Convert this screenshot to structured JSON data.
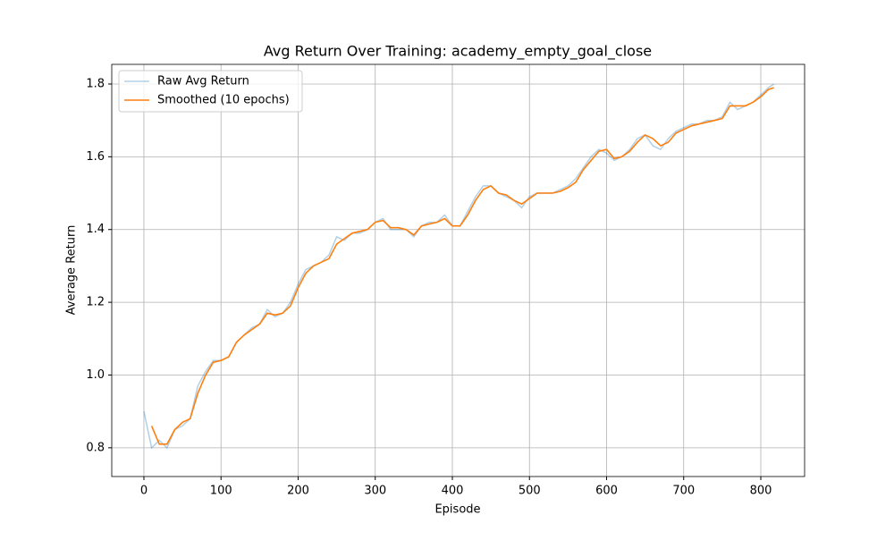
{
  "chart_data": {
    "type": "line",
    "title": "Avg Return Over Training: academy_empty_goal_close",
    "x_label": "Episode",
    "y_label": "Average Return",
    "x": [
      0,
      10,
      20,
      30,
      40,
      50,
      60,
      70,
      80,
      90,
      100,
      110,
      120,
      130,
      140,
      150,
      160,
      170,
      180,
      190,
      200,
      210,
      220,
      230,
      240,
      250,
      260,
      270,
      280,
      290,
      300,
      310,
      320,
      330,
      340,
      350,
      360,
      370,
      380,
      390,
      400,
      410,
      420,
      430,
      440,
      450,
      460,
      470,
      480,
      490,
      500,
      510,
      520,
      530,
      540,
      550,
      560,
      570,
      580,
      590,
      600,
      610,
      620,
      630,
      640,
      650,
      660,
      670,
      680,
      690,
      700,
      710,
      720,
      730,
      740,
      750,
      760,
      770,
      780,
      790,
      800,
      810,
      817
    ],
    "series": [
      {
        "name": "Raw Avg Return",
        "color": "#1f77b4",
        "values": [
          0.9,
          0.8,
          0.82,
          0.8,
          0.85,
          0.86,
          0.88,
          0.97,
          1.01,
          1.04,
          1.04,
          1.05,
          1.09,
          1.11,
          1.13,
          1.14,
          1.18,
          1.16,
          1.17,
          1.2,
          1.25,
          1.29,
          1.3,
          1.31,
          1.33,
          1.38,
          1.37,
          1.39,
          1.39,
          1.4,
          1.42,
          1.43,
          1.4,
          1.4,
          1.4,
          1.38,
          1.41,
          1.42,
          1.42,
          1.44,
          1.41,
          1.41,
          1.45,
          1.49,
          1.52,
          1.52,
          1.5,
          1.49,
          1.48,
          1.46,
          1.49,
          1.5,
          1.5,
          1.5,
          1.51,
          1.52,
          1.54,
          1.57,
          1.6,
          1.62,
          1.61,
          1.59,
          1.6,
          1.62,
          1.65,
          1.66,
          1.63,
          1.62,
          1.65,
          1.67,
          1.68,
          1.69,
          1.69,
          1.7,
          1.7,
          1.71,
          1.75,
          1.73,
          1.74,
          1.75,
          1.77,
          1.79,
          1.8
        ]
      },
      {
        "name": "Smoothed (10 epochs)",
        "color": "#ff7f0e",
        "values": [
          null,
          0.86,
          0.81,
          0.81,
          0.85,
          0.87,
          0.88,
          0.95,
          1.0,
          1.035,
          1.04,
          1.05,
          1.09,
          1.11,
          1.125,
          1.14,
          1.17,
          1.165,
          1.17,
          1.19,
          1.24,
          1.28,
          1.3,
          1.31,
          1.32,
          1.36,
          1.375,
          1.39,
          1.395,
          1.4,
          1.42,
          1.425,
          1.405,
          1.405,
          1.4,
          1.385,
          1.41,
          1.415,
          1.42,
          1.43,
          1.41,
          1.41,
          1.44,
          1.48,
          1.51,
          1.52,
          1.5,
          1.495,
          1.48,
          1.47,
          1.485,
          1.5,
          1.5,
          1.5,
          1.505,
          1.515,
          1.53,
          1.565,
          1.59,
          1.615,
          1.62,
          1.595,
          1.6,
          1.615,
          1.64,
          1.66,
          1.65,
          1.63,
          1.64,
          1.665,
          1.675,
          1.685,
          1.69,
          1.695,
          1.7,
          1.705,
          1.74,
          1.74,
          1.74,
          1.75,
          1.765,
          1.785,
          1.79
        ]
      }
    ],
    "xlim": [
      -41.7,
      856.8
    ],
    "ylim": [
      0.721,
      1.854
    ],
    "xticks": [
      0,
      100,
      200,
      300,
      400,
      500,
      600,
      700,
      800
    ],
    "yticks": [
      0.8,
      {
        "value": 1,
        "label": "1.0"
      },
      1.2,
      1.4,
      1.6,
      1.8
    ],
    "grid": true,
    "legend": "upper left"
  }
}
